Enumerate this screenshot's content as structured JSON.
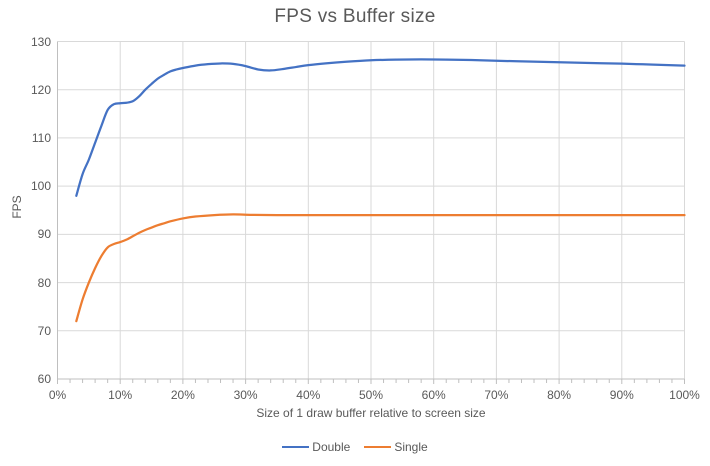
{
  "title": "FPS vs Buffer size",
  "colors": {
    "text": "#595959",
    "gridline": "#D9D9D9",
    "axis_line": "#BFBFBF",
    "background": "#FFFFFF",
    "series_double": "#4472C4",
    "series_single": "#ED7D31"
  },
  "chart_data": {
    "type": "line",
    "title": "FPS vs Buffer size",
    "xlabel": "Size of 1 draw buffer relative to screen size",
    "ylabel": "FPS",
    "xlim": [
      0,
      100
    ],
    "ylim": [
      60,
      130
    ],
    "grid": true,
    "smooth": true,
    "legend_position": "bottom",
    "x_tick_values": [
      0,
      10,
      20,
      30,
      40,
      50,
      60,
      70,
      80,
      90,
      100
    ],
    "x_ticks": [
      "0%",
      "10%",
      "20%",
      "30%",
      "40%",
      "50%",
      "60%",
      "70%",
      "80%",
      "90%",
      "100%"
    ],
    "x_minor_tick_step": 2,
    "y_ticks": [
      60,
      70,
      80,
      90,
      100,
      110,
      120,
      130
    ],
    "series": [
      {
        "name": "Double",
        "color": "#4472C4",
        "points": [
          [
            3,
            98
          ],
          [
            4,
            102.5
          ],
          [
            5,
            105.5
          ],
          [
            6,
            109
          ],
          [
            7,
            112.5
          ],
          [
            8,
            115.8
          ],
          [
            9,
            117
          ],
          [
            10,
            117.2
          ],
          [
            11,
            117.3
          ],
          [
            12,
            117.6
          ],
          [
            13,
            118.6
          ],
          [
            14,
            120
          ],
          [
            15,
            121.2
          ],
          [
            16,
            122.3
          ],
          [
            17,
            123.1
          ],
          [
            18,
            123.8
          ],
          [
            19,
            124.2
          ],
          [
            20,
            124.5
          ],
          [
            22,
            125
          ],
          [
            24,
            125.3
          ],
          [
            26,
            125.45
          ],
          [
            28,
            125.35
          ],
          [
            30,
            124.9
          ],
          [
            32,
            124.2
          ],
          [
            34,
            124
          ],
          [
            36,
            124.3
          ],
          [
            38,
            124.7
          ],
          [
            40,
            125.1
          ],
          [
            43,
            125.5
          ],
          [
            46,
            125.8
          ],
          [
            50,
            126.1
          ],
          [
            54,
            126.25
          ],
          [
            58,
            126.3
          ],
          [
            62,
            126.25
          ],
          [
            66,
            126.15
          ],
          [
            70,
            126
          ],
          [
            75,
            125.85
          ],
          [
            80,
            125.7
          ],
          [
            85,
            125.55
          ],
          [
            90,
            125.4
          ],
          [
            95,
            125.2
          ],
          [
            100,
            125
          ]
        ]
      },
      {
        "name": "Single",
        "color": "#ED7D31",
        "points": [
          [
            3,
            72
          ],
          [
            4,
            76.5
          ],
          [
            5,
            80
          ],
          [
            6,
            83
          ],
          [
            7,
            85.5
          ],
          [
            8,
            87.3
          ],
          [
            9,
            88
          ],
          [
            10,
            88.4
          ],
          [
            11,
            88.9
          ],
          [
            12,
            89.6
          ],
          [
            13,
            90.3
          ],
          [
            14,
            90.9
          ],
          [
            15,
            91.4
          ],
          [
            16,
            91.9
          ],
          [
            17,
            92.3
          ],
          [
            18,
            92.7
          ],
          [
            20,
            93.3
          ],
          [
            22,
            93.7
          ],
          [
            25,
            94
          ],
          [
            28,
            94.15
          ],
          [
            31,
            94.05
          ],
          [
            35,
            94
          ],
          [
            40,
            94
          ],
          [
            45,
            94
          ],
          [
            50,
            94
          ],
          [
            55,
            94
          ],
          [
            60,
            94
          ],
          [
            65,
            94
          ],
          [
            70,
            94
          ],
          [
            75,
            94
          ],
          [
            80,
            94
          ],
          [
            85,
            94
          ],
          [
            90,
            94
          ],
          [
            95,
            94
          ],
          [
            100,
            94
          ]
        ]
      }
    ]
  }
}
